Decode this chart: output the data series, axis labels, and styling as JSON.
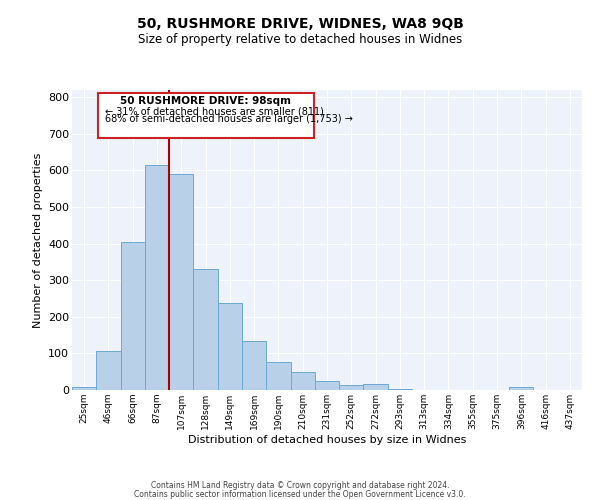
{
  "title": "50, RUSHMORE DRIVE, WIDNES, WA8 9QB",
  "subtitle": "Size of property relative to detached houses in Widnes",
  "xlabel": "Distribution of detached houses by size in Widnes",
  "ylabel": "Number of detached properties",
  "bar_labels": [
    "25sqm",
    "46sqm",
    "66sqm",
    "87sqm",
    "107sqm",
    "128sqm",
    "149sqm",
    "169sqm",
    "190sqm",
    "210sqm",
    "231sqm",
    "252sqm",
    "272sqm",
    "293sqm",
    "313sqm",
    "334sqm",
    "355sqm",
    "375sqm",
    "396sqm",
    "416sqm",
    "437sqm"
  ],
  "bar_values": [
    8,
    106,
    404,
    614,
    590,
    332,
    237,
    134,
    76,
    50,
    25,
    13,
    16,
    4,
    0,
    0,
    0,
    0,
    8,
    0,
    0
  ],
  "bar_color": "#b8d0e8",
  "bar_edgecolor": "#6aaad4",
  "vline_color": "#aa0000",
  "annotation_title": "50 RUSHMORE DRIVE: 98sqm",
  "annotation_line1": "← 31% of detached houses are smaller (811)",
  "annotation_line2": "68% of semi-detached houses are larger (1,753) →",
  "annotation_box_edgecolor": "#cc2222",
  "ylim": [
    0,
    820
  ],
  "yticks": [
    0,
    100,
    200,
    300,
    400,
    500,
    600,
    700,
    800
  ],
  "bg_color": "#eef2fb",
  "grid_color": "#ffffff",
  "footer1": "Contains HM Land Registry data © Crown copyright and database right 2024.",
  "footer2": "Contains public sector information licensed under the Open Government Licence v3.0."
}
